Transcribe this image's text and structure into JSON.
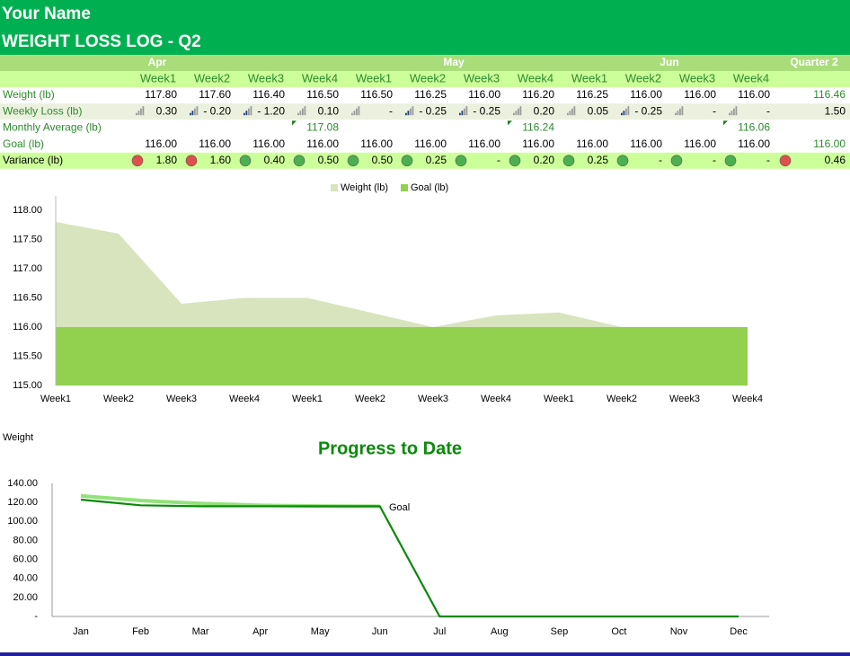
{
  "header": {
    "name": "Your Name",
    "title": "WEIGHT LOSS LOG - Q2"
  },
  "table": {
    "months": [
      "Apr",
      "May",
      "Jun"
    ],
    "quarter": "Quarter 2",
    "weeks": [
      "Week1",
      "Week2",
      "Week3",
      "Week4",
      "Week1",
      "Week2",
      "Week3",
      "Week4",
      "Week1",
      "Week2",
      "Week3",
      "Week4"
    ],
    "rows": [
      {
        "label": "Weight (lb)",
        "cells": [
          "117.80",
          "117.60",
          "116.40",
          "116.50",
          "116.50",
          "116.25",
          "116.00",
          "116.20",
          "116.25",
          "116.00",
          "116.00",
          "116.00"
        ],
        "quarter": "116.46"
      },
      {
        "label": "Weekly Loss (lb)",
        "cells": [
          "0.30",
          "- 0.20",
          "- 1.20",
          "0.10",
          "-",
          "- 0.25",
          "- 0.25",
          "0.20",
          "0.05",
          "- 0.25",
          "-",
          "-"
        ],
        "quarter": "1.50"
      },
      {
        "label": "Monthly Average (lb)",
        "cells": [
          null,
          null,
          null,
          "117.08",
          null,
          null,
          null,
          "116.24",
          null,
          null,
          null,
          "116.06"
        ]
      },
      {
        "label": "Goal (lb)",
        "cells": [
          "116.00",
          "116.00",
          "116.00",
          "116.00",
          "116.00",
          "116.00",
          "116.00",
          "116.00",
          "116.00",
          "116.00",
          "116.00",
          "116.00"
        ],
        "quarter": "116.00"
      },
      {
        "label": "Variance (lb)",
        "cells": [
          "1.80",
          "1.60",
          "0.40",
          "0.50",
          "0.50",
          "0.25",
          "-",
          "0.20",
          "0.25",
          "-",
          "-",
          "-"
        ],
        "quarter": "0.46"
      }
    ],
    "variance_icons": [
      "#e0504a",
      "#e0504a",
      "#4caf50",
      "#4caf50",
      "#4caf50",
      "#4caf50",
      "#4caf50",
      "#4caf50",
      "#4caf50",
      "#4caf50",
      "#4caf50",
      "#4caf50",
      "#e0504a"
    ]
  },
  "chart_data": [
    {
      "type": "area",
      "categories": [
        "Week1",
        "Week2",
        "Week3",
        "Week4",
        "Week1",
        "Week2",
        "Week3",
        "Week4",
        "Week1",
        "Week2",
        "Week3",
        "Week4"
      ],
      "series": [
        {
          "name": "Weight (lb)",
          "color": "#d7e4bd",
          "values": [
            117.8,
            117.6,
            116.4,
            116.5,
            116.5,
            116.25,
            116,
            116.2,
            116.25,
            116,
            116,
            116
          ]
        },
        {
          "name": "Goal (lb)",
          "color": "#92d050",
          "values": [
            116,
            116,
            116,
            116,
            116,
            116,
            116,
            116,
            116,
            116,
            116,
            116
          ]
        }
      ],
      "ylim": [
        115,
        118
      ],
      "yticks": [
        {
          "value": 115,
          "label": "115.00"
        },
        {
          "value": 115.5,
          "label": "115.50"
        },
        {
          "value": 116,
          "label": "116.00"
        },
        {
          "value": 116.5,
          "label": "116.50"
        },
        {
          "value": 117,
          "label": "117.00"
        },
        {
          "value": 117.5,
          "label": "117.50"
        },
        {
          "value": 118,
          "label": "118.00"
        }
      ],
      "legend": "top"
    },
    {
      "type": "line",
      "title": "Progress to Date",
      "ylabel": "Weight",
      "annotation": "Goal",
      "categories": [
        "Jan",
        "Feb",
        "Mar",
        "Apr",
        "May",
        "Jun",
        "Jul",
        "Aug",
        "Sep",
        "Oct",
        "Nov",
        "Dec"
      ],
      "series": [
        {
          "color": "#92e27a",
          "values": [
            127,
            122,
            119,
            117,
            116.2,
            116,
            null,
            null,
            null,
            null,
            null,
            null
          ]
        },
        {
          "color": "#0a8a0a",
          "values": [
            123,
            117,
            116,
            116,
            116,
            116,
            0,
            0,
            0,
            0,
            0,
            0
          ]
        }
      ],
      "ylim": [
        0,
        140
      ],
      "yticks": [
        {
          "value": 0,
          "label": "-"
        },
        {
          "value": 20,
          "label": "20.00"
        },
        {
          "value": 40,
          "label": "40.00"
        },
        {
          "value": 60,
          "label": "60.00"
        },
        {
          "value": 80,
          "label": "80.00"
        },
        {
          "value": 100,
          "label": "100.00"
        },
        {
          "value": 120,
          "label": "120.00"
        },
        {
          "value": 140,
          "label": "140.00"
        }
      ]
    }
  ]
}
